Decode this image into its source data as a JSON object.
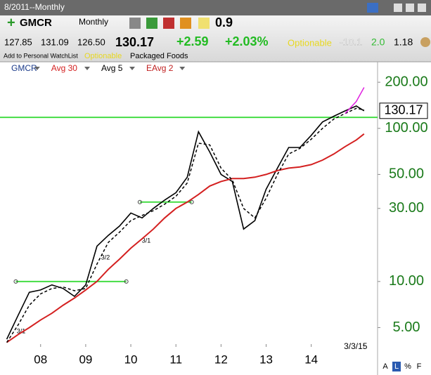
{
  "header": {
    "window_title": "8/2011--Monthly",
    "symbol": "GMCR",
    "period": "Monthly",
    "rank": "0.9",
    "open": "127.85",
    "high": "131.09",
    "low": "126.50",
    "change": "+2.59",
    "change_pct": "+2.03%",
    "optionable_top": "Optionable",
    "stat1": "-10.1",
    "stat2": "2.0",
    "stat3": "1.18",
    "watchlist": "Add to Personal WatchList",
    "optionable": "Optionable",
    "industry": "Packaged Foods",
    "corner_buttons": [
      "A",
      "L",
      "%",
      "F"
    ]
  },
  "chart_data": {
    "type": "line",
    "log_scale": true,
    "last_price": 130.17,
    "x": [
      2007.25,
      2007.5,
      2007.75,
      2008.0,
      2008.25,
      2008.5,
      2008.75,
      2009.0,
      2009.25,
      2009.5,
      2009.75,
      2010.0,
      2010.25,
      2010.5,
      2010.75,
      2011.0,
      2011.25,
      2011.5,
      2011.75,
      2012.0,
      2012.25,
      2012.5,
      2012.75,
      2013.0,
      2013.25,
      2013.5,
      2013.75,
      2014.0,
      2014.25,
      2014.5,
      2014.75,
      2015.0,
      2015.17
    ],
    "series": [
      {
        "name": "GMCR",
        "color": "#000000",
        "values": [
          4.2,
          6.0,
          8.5,
          8.8,
          9.5,
          9.0,
          8.0,
          9.5,
          17,
          20,
          23,
          28,
          26,
          30,
          34,
          38,
          48,
          95,
          70,
          50,
          45,
          22,
          25,
          40,
          55,
          75,
          75,
          90,
          110,
          120,
          130,
          140,
          130.17
        ]
      },
      {
        "name": "Avg 30",
        "color": "#d42020",
        "values": [
          4.0,
          4.5,
          5.0,
          5.6,
          6.2,
          7.0,
          7.8,
          8.8,
          10,
          12,
          14,
          16.5,
          19,
          22,
          26,
          30,
          33,
          37,
          42,
          45,
          47,
          47,
          48,
          50,
          53,
          55,
          56,
          58,
          62,
          68,
          76,
          84,
          92
        ]
      },
      {
        "name": "Avg 5",
        "color": "#000000",
        "dashed": true,
        "values": [
          4.0,
          5.2,
          7.0,
          8.3,
          9.0,
          9.2,
          8.7,
          9.0,
          13,
          18,
          21,
          25,
          27,
          29,
          32,
          36,
          44,
          80,
          78,
          55,
          46,
          30,
          26,
          35,
          50,
          68,
          74,
          85,
          100,
          115,
          125,
          135,
          132
        ]
      },
      {
        "name": "EAvg 2",
        "color": "#e020e0",
        "values": [
          null,
          null,
          null,
          null,
          null,
          null,
          null,
          null,
          null,
          null,
          null,
          null,
          null,
          null,
          null,
          null,
          null,
          null,
          null,
          null,
          null,
          null,
          null,
          null,
          null,
          null,
          null,
          null,
          null,
          null,
          125,
          150,
          185
        ]
      }
    ],
    "hlines": [
      {
        "value": 118,
        "from": 2007.1,
        "to": 2015.47,
        "color": "#44dd44"
      },
      {
        "value": 10,
        "from": 2007.45,
        "to": 2009.9,
        "color": "#44dd44"
      },
      {
        "value": 33,
        "from": 2010.2,
        "to": 2011.35,
        "color": "#44dd44"
      }
    ],
    "notes": [
      "3/1",
      "3/2",
      "3/1"
    ],
    "xlim": [
      2007.1,
      2015.47
    ],
    "xticks": [
      {
        "value": 2008,
        "label": "08"
      },
      {
        "value": 2009,
        "label": "09"
      },
      {
        "value": 2010,
        "label": "10"
      },
      {
        "value": 2011,
        "label": "11"
      },
      {
        "value": 2012,
        "label": "12"
      },
      {
        "value": 2013,
        "label": "13"
      },
      {
        "value": 2014,
        "label": "14"
      },
      {
        "value": 2015.17,
        "label": "3/3/15"
      }
    ],
    "ylim": [
      3.9,
      272
    ],
    "yticks": [
      {
        "value": 5,
        "label": "5.00"
      },
      {
        "value": 10,
        "label": "10.00"
      },
      {
        "value": 30,
        "label": "30.00"
      },
      {
        "value": 50,
        "label": "50.00"
      },
      {
        "value": 100,
        "label": "100.00"
      },
      {
        "value": 200,
        "label": "200.00"
      }
    ]
  }
}
